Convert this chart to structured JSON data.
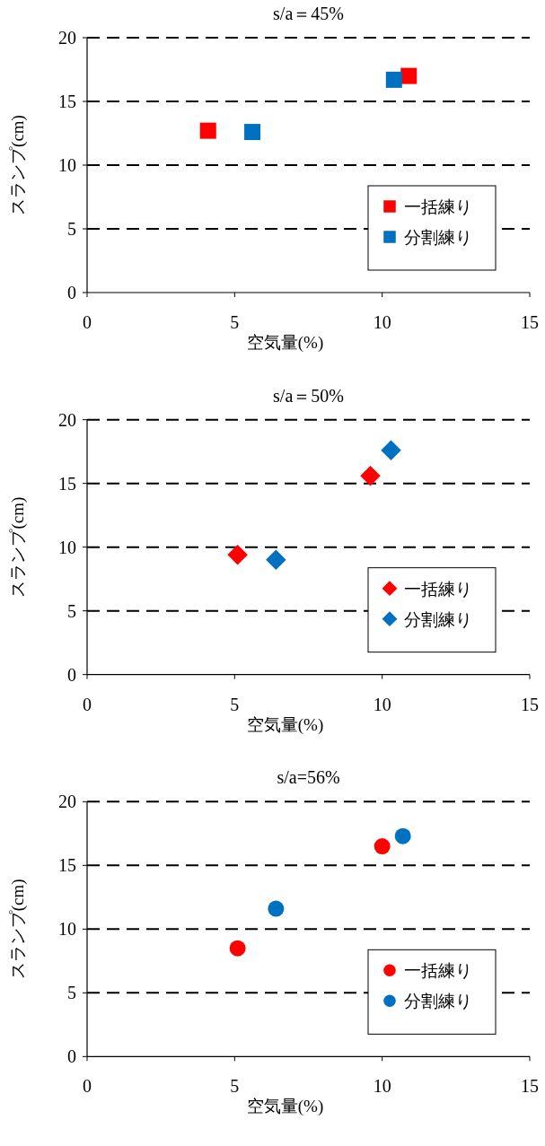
{
  "chart_data": [
    {
      "type": "scatter",
      "title": "s/a＝45%",
      "xlabel": "空気量(%)",
      "ylabel": "スランプ(cm)",
      "xlim": [
        0,
        15
      ],
      "xticks": [
        0,
        5,
        10,
        15
      ],
      "ylim": [
        0,
        20
      ],
      "yticks": [
        0,
        5,
        10,
        15,
        20
      ],
      "grid": "y",
      "legend": "bottom right",
      "marker": "square",
      "series": [
        {
          "name": "一括練り",
          "color": "#ff0000",
          "x": [
            4.1,
            10.9
          ],
          "values": [
            12.7,
            17.0
          ]
        },
        {
          "name": "分割練り",
          "color": "#0070c0",
          "x": [
            5.6,
            10.4
          ],
          "values": [
            12.6,
            16.7
          ]
        }
      ]
    },
    {
      "type": "scatter",
      "title": "s/a＝50%",
      "xlabel": "空気量(%)",
      "ylabel": "スランプ(cm)",
      "xlim": [
        0,
        15
      ],
      "xticks": [
        0,
        5,
        10,
        15
      ],
      "ylim": [
        0,
        20
      ],
      "yticks": [
        0,
        5,
        10,
        15,
        20
      ],
      "grid": "y",
      "legend": "bottom right",
      "marker": "diamond",
      "series": [
        {
          "name": "一括練り",
          "color": "#ff0000",
          "x": [
            5.1,
            9.6
          ],
          "values": [
            9.4,
            15.6
          ]
        },
        {
          "name": "分割練り",
          "color": "#0070c0",
          "x": [
            6.4,
            10.3
          ],
          "values": [
            9.0,
            17.6
          ]
        }
      ]
    },
    {
      "type": "scatter",
      "title": "s/a=56%",
      "xlabel": "空気量(%)",
      "ylabel": "スランプ(cm)",
      "xlim": [
        0,
        15
      ],
      "xticks": [
        0,
        5,
        10,
        15
      ],
      "ylim": [
        0,
        20
      ],
      "yticks": [
        0,
        5,
        10,
        15,
        20
      ],
      "grid": "y",
      "legend": "bottom right",
      "marker": "circle",
      "series": [
        {
          "name": "一括練り",
          "color": "#ff0000",
          "x": [
            5.1,
            10.0
          ],
          "values": [
            8.5,
            16.5
          ]
        },
        {
          "name": "分割練り",
          "color": "#0070c0",
          "x": [
            6.4,
            10.7
          ],
          "values": [
            11.6,
            17.3
          ]
        }
      ]
    }
  ]
}
